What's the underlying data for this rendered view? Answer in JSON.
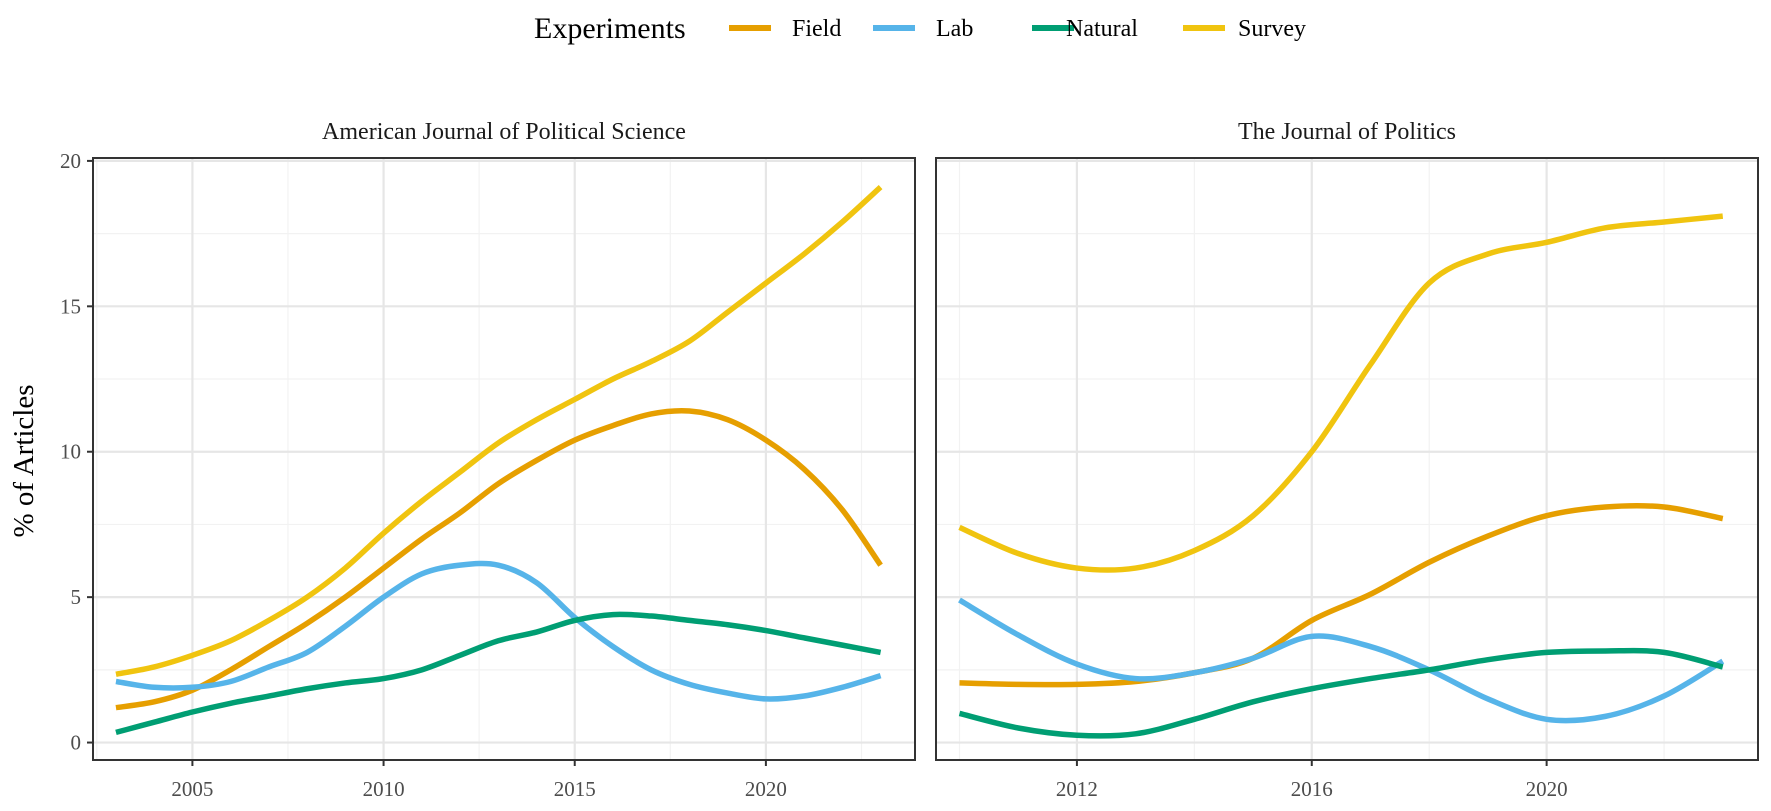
{
  "chart_data": {
    "type": "line",
    "ylabel": "% of Articles",
    "ylim": [
      -0.6,
      20.1
    ],
    "yticks": [
      0,
      5,
      10,
      15,
      20
    ],
    "grid": true,
    "legend": {
      "title": "Experiments",
      "placement": "top",
      "entries": [
        {
          "name": "Field",
          "color": "#E69F00"
        },
        {
          "name": "Lab",
          "color": "#56B4E9"
        },
        {
          "name": "Natural",
          "color": "#009E73"
        },
        {
          "name": "Survey",
          "color": "#F0C40F"
        }
      ]
    },
    "panels": [
      {
        "title": "American Journal of Political Science",
        "xlim": [
          2002.4,
          2023.9
        ],
        "xticks": [
          2005,
          2010,
          2015,
          2020
        ],
        "series": [
          {
            "name": "Field",
            "color": "#E69F00",
            "x": [
              2003,
              2004,
              2005,
              2006,
              2007,
              2008,
              2009,
              2010,
              2011,
              2012,
              2013,
              2014,
              2015,
              2016,
              2017,
              2018,
              2019,
              2020,
              2021,
              2022,
              2023
            ],
            "y": [
              1.2,
              1.4,
              1.8,
              2.5,
              3.3,
              4.1,
              5.0,
              6.0,
              7.0,
              7.9,
              8.9,
              9.7,
              10.4,
              10.9,
              11.3,
              11.4,
              11.1,
              10.4,
              9.4,
              8.0,
              6.1
            ]
          },
          {
            "name": "Lab",
            "color": "#56B4E9",
            "x": [
              2003,
              2004,
              2005,
              2006,
              2007,
              2008,
              2009,
              2010,
              2011,
              2012,
              2013,
              2014,
              2015,
              2016,
              2017,
              2018,
              2019,
              2020,
              2021,
              2022,
              2023
            ],
            "y": [
              2.1,
              1.9,
              1.9,
              2.1,
              2.6,
              3.1,
              4.0,
              5.0,
              5.8,
              6.1,
              6.1,
              5.5,
              4.3,
              3.3,
              2.5,
              2.0,
              1.7,
              1.5,
              1.6,
              1.9,
              2.3
            ]
          },
          {
            "name": "Natural",
            "color": "#009E73",
            "x": [
              2003,
              2004,
              2005,
              2006,
              2007,
              2008,
              2009,
              2010,
              2011,
              2012,
              2013,
              2014,
              2015,
              2016,
              2017,
              2018,
              2019,
              2020,
              2021,
              2022,
              2023
            ],
            "y": [
              0.35,
              0.7,
              1.05,
              1.35,
              1.6,
              1.85,
              2.05,
              2.2,
              2.5,
              3.0,
              3.5,
              3.8,
              4.2,
              4.4,
              4.35,
              4.2,
              4.05,
              3.85,
              3.6,
              3.35,
              3.1
            ]
          },
          {
            "name": "Survey",
            "color": "#F0C40F",
            "x": [
              2003,
              2004,
              2005,
              2006,
              2007,
              2008,
              2009,
              2010,
              2011,
              2012,
              2013,
              2014,
              2015,
              2016,
              2017,
              2018,
              2019,
              2020,
              2021,
              2022,
              2023
            ],
            "y": [
              2.35,
              2.6,
              3.0,
              3.5,
              4.2,
              5.0,
              6.0,
              7.2,
              8.3,
              9.3,
              10.3,
              11.1,
              11.8,
              12.5,
              13.1,
              13.8,
              14.8,
              15.8,
              16.8,
              17.9,
              19.1
            ]
          }
        ]
      },
      {
        "title": "The Journal of Politics",
        "xlim": [
          2009.6,
          2023.6
        ],
        "xticks": [
          2012,
          2016,
          2020
        ],
        "series": [
          {
            "name": "Field",
            "color": "#E69F00",
            "x": [
              2010,
              2011,
              2012,
              2013,
              2014,
              2015,
              2016,
              2017,
              2018,
              2019,
              2020,
              2021,
              2022,
              2023
            ],
            "y": [
              2.05,
              2.0,
              2.0,
              2.1,
              2.4,
              2.9,
              4.2,
              5.1,
              6.2,
              7.1,
              7.8,
              8.1,
              8.1,
              7.7
            ]
          },
          {
            "name": "Lab",
            "color": "#56B4E9",
            "x": [
              2010,
              2011,
              2012,
              2013,
              2014,
              2015,
              2016,
              2017,
              2018,
              2019,
              2020,
              2021,
              2022,
              2023
            ],
            "y": [
              4.9,
              3.7,
              2.7,
              2.2,
              2.4,
              2.9,
              3.65,
              3.3,
              2.5,
              1.5,
              0.8,
              0.9,
              1.6,
              2.8
            ]
          },
          {
            "name": "Natural",
            "color": "#009E73",
            "x": [
              2010,
              2011,
              2012,
              2013,
              2014,
              2015,
              2016,
              2017,
              2018,
              2019,
              2020,
              2021,
              2022,
              2023
            ],
            "y": [
              1.0,
              0.5,
              0.25,
              0.3,
              0.8,
              1.4,
              1.85,
              2.2,
              2.5,
              2.85,
              3.1,
              3.15,
              3.1,
              2.6
            ]
          },
          {
            "name": "Survey",
            "color": "#F0C40F",
            "x": [
              2010,
              2011,
              2012,
              2013,
              2014,
              2015,
              2016,
              2017,
              2018,
              2019,
              2020,
              2021,
              2022,
              2023
            ],
            "y": [
              7.4,
              6.5,
              6.0,
              6.0,
              6.6,
              7.8,
              10.0,
              13.0,
              15.8,
              16.8,
              17.2,
              17.7,
              17.9,
              18.1
            ]
          }
        ]
      }
    ]
  }
}
